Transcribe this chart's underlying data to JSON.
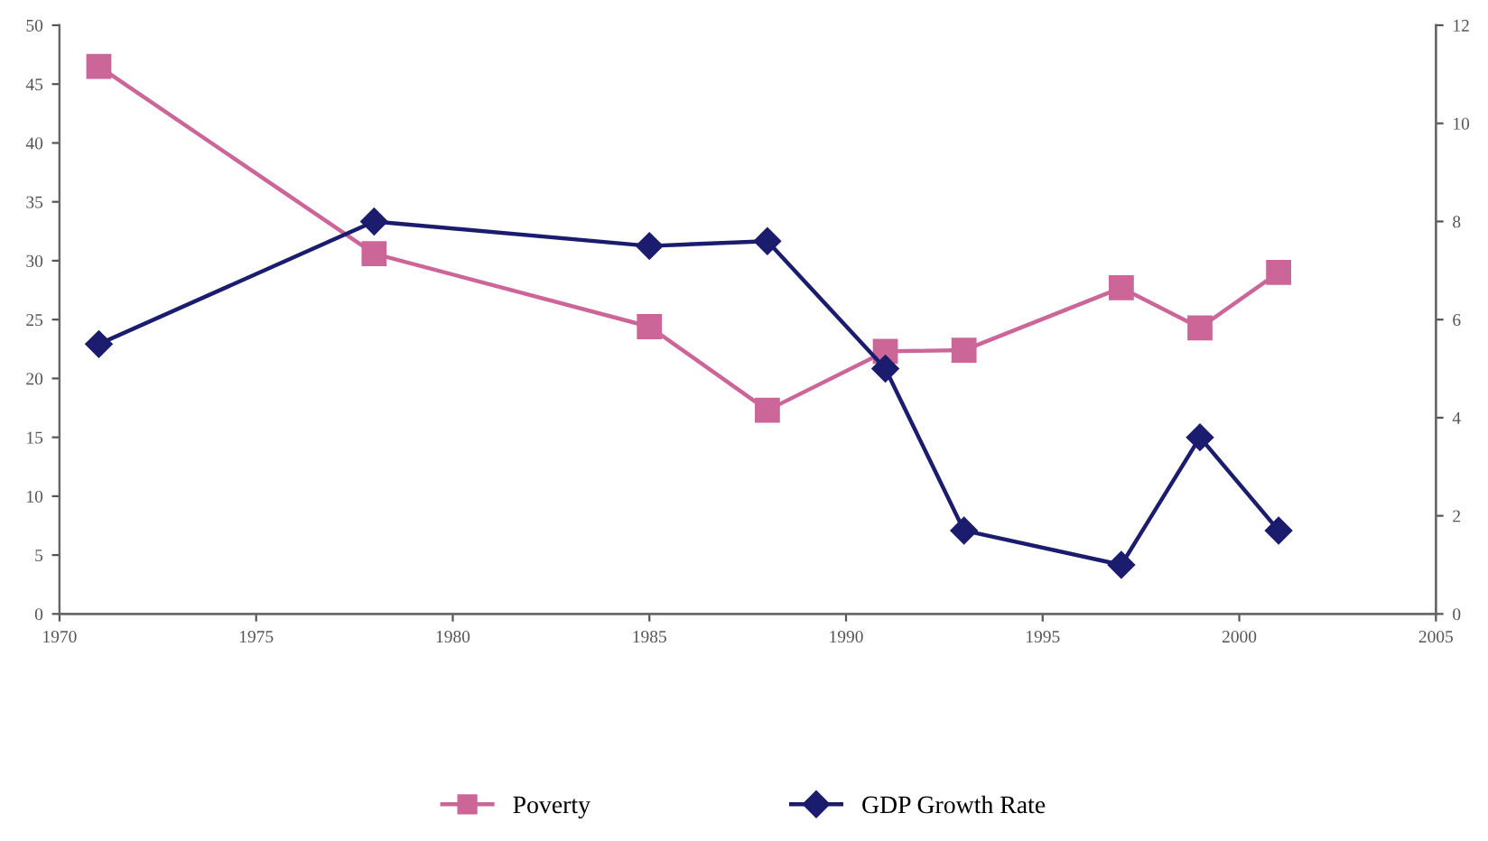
{
  "chart_data": {
    "type": "line",
    "x": [
      1971,
      1978,
      1985,
      1988,
      1991,
      1993,
      1997,
      1999,
      2001
    ],
    "series": [
      {
        "name": "Poverty",
        "color": "#cc6699",
        "marker": "square",
        "values": [
          46.5,
          30.6,
          24.4,
          17.3,
          22.3,
          22.4,
          27.7,
          24.3,
          29.0
        ]
      },
      {
        "name": "GDP Growth Rate",
        "color": "#1c1c6e",
        "marker": "diamond",
        "axis": "y2",
        "values": [
          5.5,
          8.0,
          7.5,
          7.6,
          5.0,
          1.7,
          1.0,
          3.6,
          1.7
        ]
      }
    ],
    "xlim": [
      1970,
      2005
    ],
    "xticks": [
      1970,
      1975,
      1980,
      1985,
      1990,
      1995,
      2000,
      2005
    ],
    "ylim": [
      0,
      50
    ],
    "yticks": [
      0,
      5,
      10,
      15,
      20,
      25,
      30,
      35,
      40,
      45,
      50
    ],
    "y2lim": [
      0,
      12
    ],
    "y2ticks": [
      0,
      2,
      4,
      6,
      8,
      10,
      12
    ],
    "legend": "bottom",
    "grid": false
  }
}
